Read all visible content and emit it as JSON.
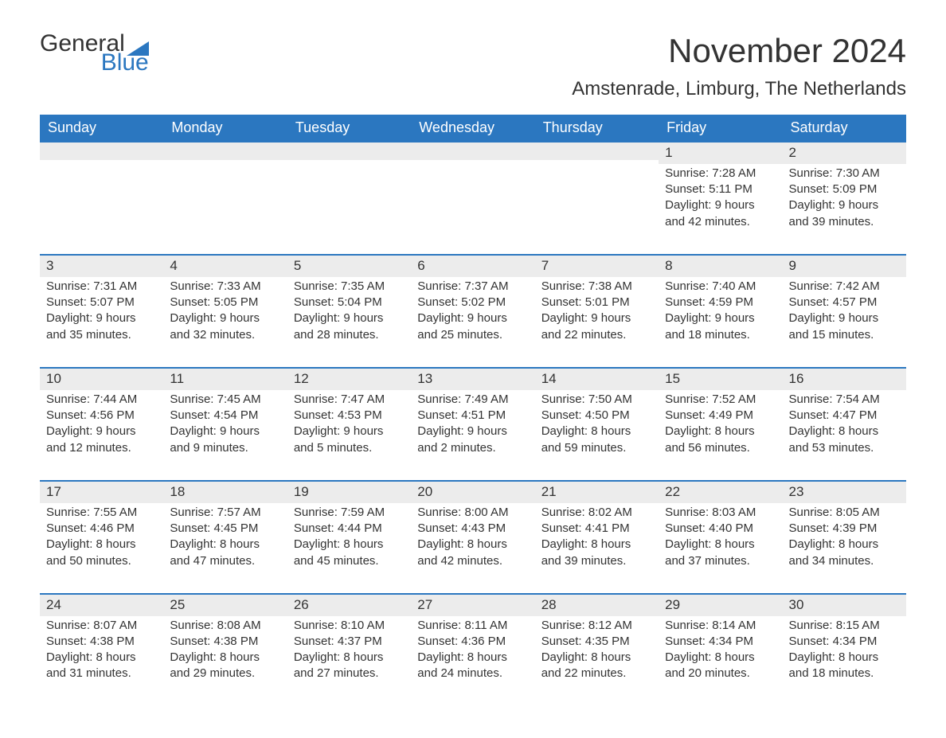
{
  "brand": {
    "general": "General",
    "blue": "Blue",
    "sail_color": "#2b77c0"
  },
  "title": "November 2024",
  "location": "Amstenrade, Limburg, The Netherlands",
  "day_headers": [
    "Sunday",
    "Monday",
    "Tuesday",
    "Wednesday",
    "Thursday",
    "Friday",
    "Saturday"
  ],
  "colors": {
    "header_bg": "#2b77c0",
    "header_text": "#ffffff",
    "band_bg": "#ececec",
    "band_border": "#2b77c0",
    "text": "#333333",
    "background": "#ffffff"
  },
  "fonts": {
    "title_size_pt": 32,
    "location_size_pt": 18,
    "header_size_pt": 14,
    "body_size_pt": 11
  },
  "weeks": [
    [
      {
        "day": "",
        "sunrise": "",
        "sunset": "",
        "daylight": ""
      },
      {
        "day": "",
        "sunrise": "",
        "sunset": "",
        "daylight": ""
      },
      {
        "day": "",
        "sunrise": "",
        "sunset": "",
        "daylight": ""
      },
      {
        "day": "",
        "sunrise": "",
        "sunset": "",
        "daylight": ""
      },
      {
        "day": "",
        "sunrise": "",
        "sunset": "",
        "daylight": ""
      },
      {
        "day": "1",
        "sunrise": "Sunrise: 7:28 AM",
        "sunset": "Sunset: 5:11 PM",
        "daylight": "Daylight: 9 hours and 42 minutes."
      },
      {
        "day": "2",
        "sunrise": "Sunrise: 7:30 AM",
        "sunset": "Sunset: 5:09 PM",
        "daylight": "Daylight: 9 hours and 39 minutes."
      }
    ],
    [
      {
        "day": "3",
        "sunrise": "Sunrise: 7:31 AM",
        "sunset": "Sunset: 5:07 PM",
        "daylight": "Daylight: 9 hours and 35 minutes."
      },
      {
        "day": "4",
        "sunrise": "Sunrise: 7:33 AM",
        "sunset": "Sunset: 5:05 PM",
        "daylight": "Daylight: 9 hours and 32 minutes."
      },
      {
        "day": "5",
        "sunrise": "Sunrise: 7:35 AM",
        "sunset": "Sunset: 5:04 PM",
        "daylight": "Daylight: 9 hours and 28 minutes."
      },
      {
        "day": "6",
        "sunrise": "Sunrise: 7:37 AM",
        "sunset": "Sunset: 5:02 PM",
        "daylight": "Daylight: 9 hours and 25 minutes."
      },
      {
        "day": "7",
        "sunrise": "Sunrise: 7:38 AM",
        "sunset": "Sunset: 5:01 PM",
        "daylight": "Daylight: 9 hours and 22 minutes."
      },
      {
        "day": "8",
        "sunrise": "Sunrise: 7:40 AM",
        "sunset": "Sunset: 4:59 PM",
        "daylight": "Daylight: 9 hours and 18 minutes."
      },
      {
        "day": "9",
        "sunrise": "Sunrise: 7:42 AM",
        "sunset": "Sunset: 4:57 PM",
        "daylight": "Daylight: 9 hours and 15 minutes."
      }
    ],
    [
      {
        "day": "10",
        "sunrise": "Sunrise: 7:44 AM",
        "sunset": "Sunset: 4:56 PM",
        "daylight": "Daylight: 9 hours and 12 minutes."
      },
      {
        "day": "11",
        "sunrise": "Sunrise: 7:45 AM",
        "sunset": "Sunset: 4:54 PM",
        "daylight": "Daylight: 9 hours and 9 minutes."
      },
      {
        "day": "12",
        "sunrise": "Sunrise: 7:47 AM",
        "sunset": "Sunset: 4:53 PM",
        "daylight": "Daylight: 9 hours and 5 minutes."
      },
      {
        "day": "13",
        "sunrise": "Sunrise: 7:49 AM",
        "sunset": "Sunset: 4:51 PM",
        "daylight": "Daylight: 9 hours and 2 minutes."
      },
      {
        "day": "14",
        "sunrise": "Sunrise: 7:50 AM",
        "sunset": "Sunset: 4:50 PM",
        "daylight": "Daylight: 8 hours and 59 minutes."
      },
      {
        "day": "15",
        "sunrise": "Sunrise: 7:52 AM",
        "sunset": "Sunset: 4:49 PM",
        "daylight": "Daylight: 8 hours and 56 minutes."
      },
      {
        "day": "16",
        "sunrise": "Sunrise: 7:54 AM",
        "sunset": "Sunset: 4:47 PM",
        "daylight": "Daylight: 8 hours and 53 minutes."
      }
    ],
    [
      {
        "day": "17",
        "sunrise": "Sunrise: 7:55 AM",
        "sunset": "Sunset: 4:46 PM",
        "daylight": "Daylight: 8 hours and 50 minutes."
      },
      {
        "day": "18",
        "sunrise": "Sunrise: 7:57 AM",
        "sunset": "Sunset: 4:45 PM",
        "daylight": "Daylight: 8 hours and 47 minutes."
      },
      {
        "day": "19",
        "sunrise": "Sunrise: 7:59 AM",
        "sunset": "Sunset: 4:44 PM",
        "daylight": "Daylight: 8 hours and 45 minutes."
      },
      {
        "day": "20",
        "sunrise": "Sunrise: 8:00 AM",
        "sunset": "Sunset: 4:43 PM",
        "daylight": "Daylight: 8 hours and 42 minutes."
      },
      {
        "day": "21",
        "sunrise": "Sunrise: 8:02 AM",
        "sunset": "Sunset: 4:41 PM",
        "daylight": "Daylight: 8 hours and 39 minutes."
      },
      {
        "day": "22",
        "sunrise": "Sunrise: 8:03 AM",
        "sunset": "Sunset: 4:40 PM",
        "daylight": "Daylight: 8 hours and 37 minutes."
      },
      {
        "day": "23",
        "sunrise": "Sunrise: 8:05 AM",
        "sunset": "Sunset: 4:39 PM",
        "daylight": "Daylight: 8 hours and 34 minutes."
      }
    ],
    [
      {
        "day": "24",
        "sunrise": "Sunrise: 8:07 AM",
        "sunset": "Sunset: 4:38 PM",
        "daylight": "Daylight: 8 hours and 31 minutes."
      },
      {
        "day": "25",
        "sunrise": "Sunrise: 8:08 AM",
        "sunset": "Sunset: 4:38 PM",
        "daylight": "Daylight: 8 hours and 29 minutes."
      },
      {
        "day": "26",
        "sunrise": "Sunrise: 8:10 AM",
        "sunset": "Sunset: 4:37 PM",
        "daylight": "Daylight: 8 hours and 27 minutes."
      },
      {
        "day": "27",
        "sunrise": "Sunrise: 8:11 AM",
        "sunset": "Sunset: 4:36 PM",
        "daylight": "Daylight: 8 hours and 24 minutes."
      },
      {
        "day": "28",
        "sunrise": "Sunrise: 8:12 AM",
        "sunset": "Sunset: 4:35 PM",
        "daylight": "Daylight: 8 hours and 22 minutes."
      },
      {
        "day": "29",
        "sunrise": "Sunrise: 8:14 AM",
        "sunset": "Sunset: 4:34 PM",
        "daylight": "Daylight: 8 hours and 20 minutes."
      },
      {
        "day": "30",
        "sunrise": "Sunrise: 8:15 AM",
        "sunset": "Sunset: 4:34 PM",
        "daylight": "Daylight: 8 hours and 18 minutes."
      }
    ]
  ]
}
